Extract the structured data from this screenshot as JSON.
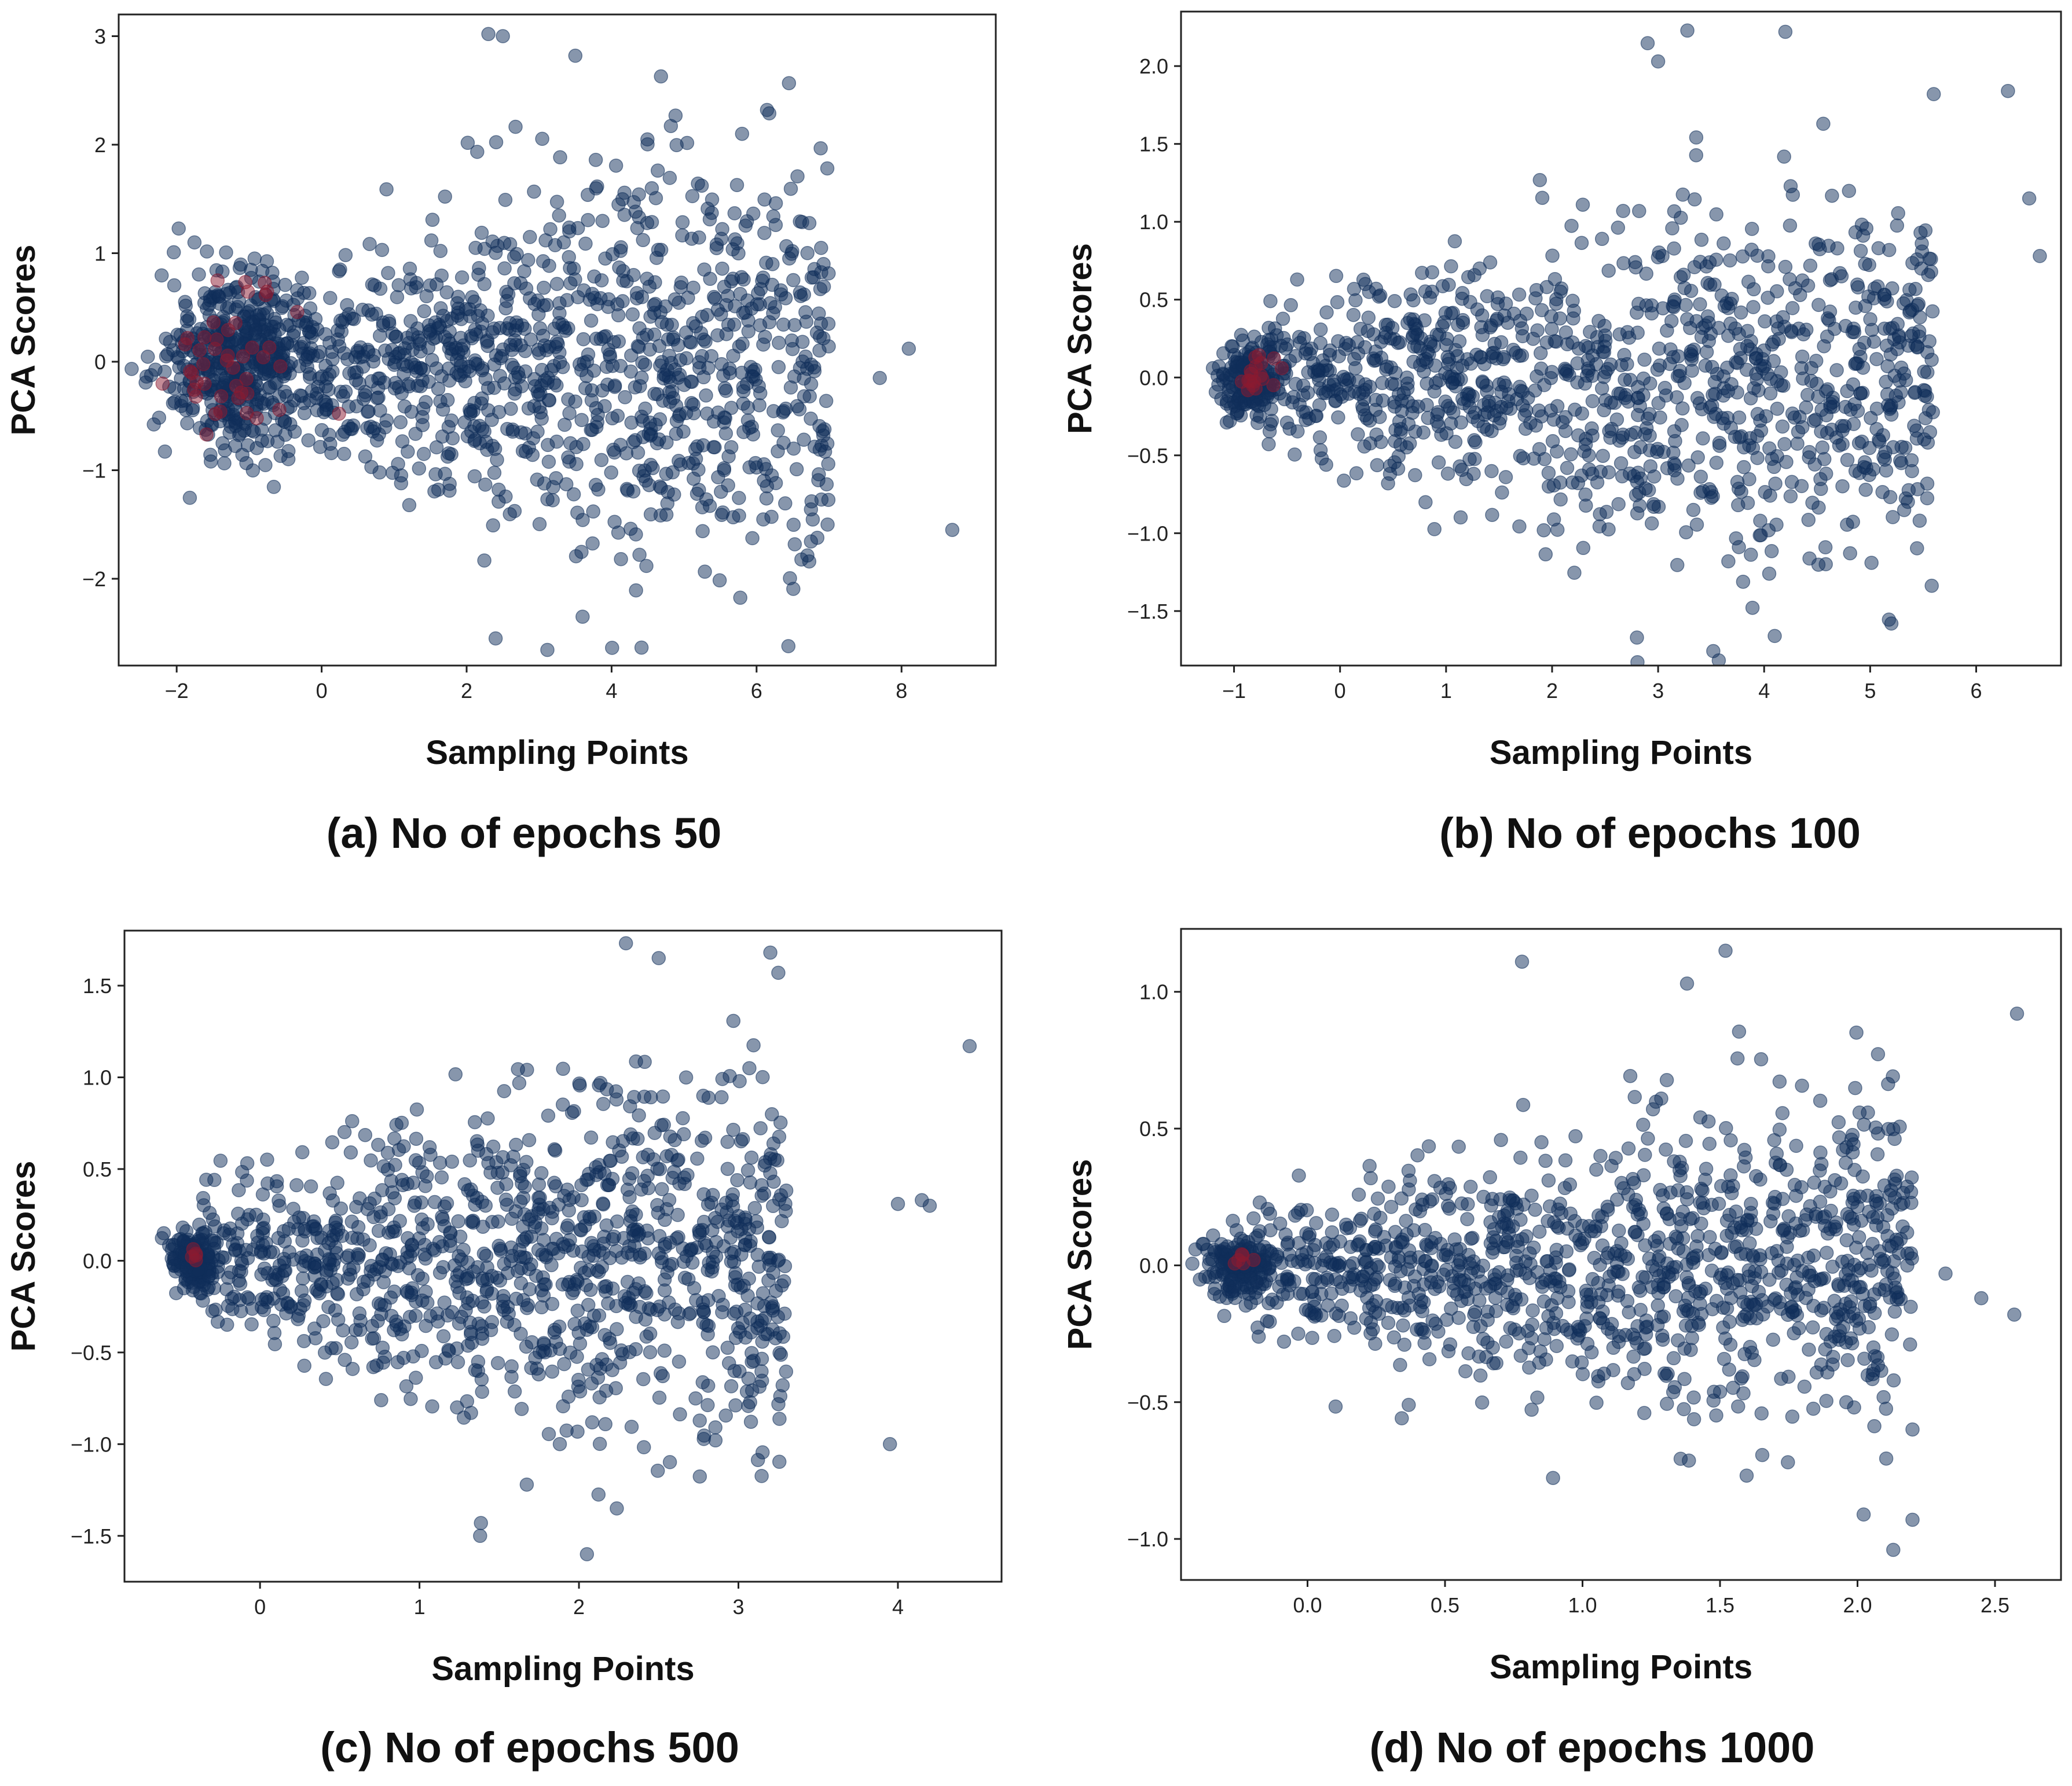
{
  "figure": {
    "point_color": "#0f2d5a",
    "point_opacity": 0.5,
    "highlight_color": "#8b1a2f"
  },
  "chart_data": [
    {
      "id": "a",
      "type": "scatter",
      "caption": "(a) No of epochs 50",
      "xlabel": "Sampling Points",
      "ylabel": "PCA Scores",
      "xlim": [
        -2.8,
        9.3
      ],
      "ylim": [
        -2.8,
        3.2
      ],
      "xticks": [
        -2,
        0,
        2,
        4,
        6,
        8
      ],
      "xtick_labels": [
        "−2",
        "0",
        "2",
        "4",
        "6",
        "8"
      ],
      "yticks": [
        -2,
        -1,
        0,
        1,
        2,
        3
      ],
      "ytick_labels": [
        "−2",
        "−1",
        "0",
        "1",
        "2",
        "3"
      ],
      "cluster": {
        "center": [
          -1.1,
          0.0
        ],
        "spread": [
          0.55,
          0.42
        ],
        "count": 500
      },
      "cloud": {
        "x_range": [
          -0.2,
          7.0
        ],
        "y_sd": 0.95,
        "count": 1000
      },
      "highlight": {
        "center": [
          -1.2,
          0.0
        ],
        "spread": [
          0.4,
          0.35
        ],
        "count": 45
      },
      "outliers": [
        [
          8.7,
          -1.55
        ],
        [
          8.1,
          0.12
        ],
        [
          7.7,
          -0.15
        ],
        [
          2.5,
          3.0
        ],
        [
          2.3,
          3.02
        ],
        [
          3.5,
          2.82
        ],
        [
          3.6,
          -2.35
        ],
        [
          2.4,
          -2.55
        ],
        [
          5.8,
          2.1
        ]
      ]
    },
    {
      "id": "b",
      "type": "scatter",
      "caption": "(b) No of epochs 100",
      "xlabel": "Sampling Points",
      "ylabel": "PCA Scores",
      "xlim": [
        -1.5,
        6.8
      ],
      "ylim": [
        -1.85,
        2.35
      ],
      "xticks": [
        -1,
        0,
        1,
        2,
        3,
        4,
        5,
        6
      ],
      "xtick_labels": [
        "−1",
        "0",
        "1",
        "2",
        "3",
        "4",
        "5",
        "6"
      ],
      "yticks": [
        -1.5,
        -1.0,
        -0.5,
        0.0,
        0.5,
        1.0,
        1.5,
        2.0
      ],
      "ytick_labels": [
        "−1.5",
        "−1.0",
        "−0.5",
        "0.0",
        "0.5",
        "1.0",
        "1.5",
        "2.0"
      ],
      "cluster": {
        "center": [
          -0.85,
          0.0
        ],
        "spread": [
          0.14,
          0.12
        ],
        "count": 160
      },
      "cloud": {
        "x_range": [
          -0.7,
          5.6
        ],
        "y_sd": 0.6,
        "count": 1100
      },
      "highlight": {
        "center": [
          -0.75,
          0.0
        ],
        "spread": [
          0.1,
          0.08
        ],
        "count": 18
      },
      "outliers": [
        [
          4.2,
          2.22
        ],
        [
          3.0,
          2.03
        ],
        [
          6.6,
          0.78
        ],
        [
          6.5,
          1.15
        ],
        [
          6.3,
          1.84
        ],
        [
          5.6,
          1.82
        ],
        [
          4.1,
          -1.66
        ],
        [
          2.8,
          -1.67
        ],
        [
          5.2,
          -1.58
        ],
        [
          -0.35,
          -0.22
        ],
        [
          -0.45,
          -0.16
        ]
      ]
    },
    {
      "id": "c",
      "type": "scatter",
      "caption": "(c) No of epochs 500",
      "xlabel": "Sampling Points",
      "ylabel": "PCA Scores",
      "xlim": [
        -0.85,
        4.65
      ],
      "ylim": [
        -1.75,
        1.8
      ],
      "xticks": [
        0,
        1,
        2,
        3,
        4
      ],
      "xtick_labels": [
        "0",
        "1",
        "2",
        "3",
        "4"
      ],
      "yticks": [
        -1.5,
        -1.0,
        -0.5,
        0.0,
        0.5,
        1.0,
        1.5
      ],
      "ytick_labels": [
        "−1.5",
        "−1.0",
        "−0.5",
        "0.0",
        "0.5",
        "1.0",
        "1.5"
      ],
      "cluster": {
        "center": [
          -0.42,
          0.0
        ],
        "spread": [
          0.07,
          0.07
        ],
        "count": 150
      },
      "cloud": {
        "x_range": [
          -0.4,
          3.3
        ],
        "y_sd": 0.5,
        "count": 1100
      },
      "highlight": {
        "center": [
          -0.42,
          0.03
        ],
        "spread": [
          0.02,
          0.02
        ],
        "count": 5
      },
      "outliers": [
        [
          4.45,
          1.17
        ],
        [
          4.15,
          0.33
        ],
        [
          4.2,
          0.3
        ],
        [
          4.0,
          0.31
        ],
        [
          3.95,
          -1.0
        ],
        [
          3.2,
          1.68
        ],
        [
          2.5,
          1.65
        ],
        [
          3.25,
          1.57
        ],
        [
          2.05,
          -1.6
        ],
        [
          1.38,
          -1.5
        ]
      ]
    },
    {
      "id": "d",
      "type": "scatter",
      "caption": "(d) No of epochs 1000",
      "xlabel": "Sampling Points",
      "ylabel": "PCA Scores",
      "xlim": [
        -0.46,
        2.74
      ],
      "ylim": [
        -1.15,
        1.23
      ],
      "xticks": [
        0.0,
        0.5,
        1.0,
        1.5,
        2.0,
        2.5
      ],
      "xtick_labels": [
        "0.0",
        "0.5",
        "1.0",
        "1.5",
        "2.0",
        "2.5"
      ],
      "yticks": [
        -1.0,
        -0.5,
        0.0,
        0.5,
        1.0
      ],
      "ytick_labels": [
        "−1.0",
        "−0.5",
        "0.0",
        "0.5",
        "1.0"
      ],
      "cluster": {
        "center": [
          -0.25,
          0.0
        ],
        "spread": [
          0.06,
          0.06
        ],
        "count": 170
      },
      "cloud": {
        "x_range": [
          -0.2,
          2.2
        ],
        "y_sd": 0.3,
        "count": 1100
      },
      "highlight": {
        "center": [
          -0.24,
          0.02
        ],
        "spread": [
          0.03,
          0.02
        ],
        "count": 6
      },
      "outliers": [
        [
          2.58,
          0.92
        ],
        [
          2.57,
          -0.18
        ],
        [
          2.45,
          -0.12
        ],
        [
          2.32,
          -0.03
        ],
        [
          1.52,
          1.15
        ],
        [
          1.38,
          1.03
        ],
        [
          0.78,
          1.11
        ],
        [
          2.13,
          -1.04
        ],
        [
          2.2,
          -0.93
        ],
        [
          2.2,
          -0.6
        ]
      ]
    }
  ]
}
